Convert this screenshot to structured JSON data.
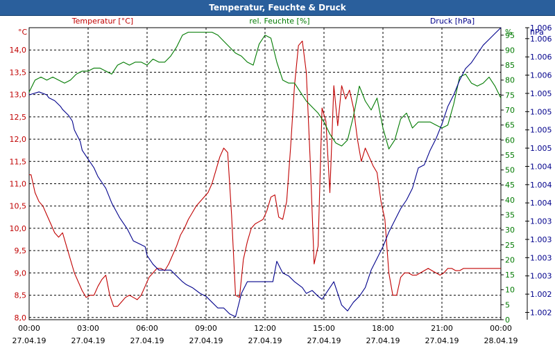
{
  "window": {
    "title": "Temperatur, Feuchte & Druck"
  },
  "chart_data": {
    "type": "line",
    "title": "Temperatur, Feuchte & Druck",
    "grid": true,
    "x_ticks": [
      {
        "time": "00:00",
        "date": "27.04.19"
      },
      {
        "time": "03:00",
        "date": "27.04.19"
      },
      {
        "time": "06:00",
        "date": "27.04.19"
      },
      {
        "time": "09:00",
        "date": "27.04.19"
      },
      {
        "time": "12:00",
        "date": "27.04.19"
      },
      {
        "time": "15:00",
        "date": "27.04.19"
      },
      {
        "time": "18:00",
        "date": "27.04.19"
      },
      {
        "time": "21:00",
        "date": "27.04.19"
      },
      {
        "time": "00:00",
        "date": "28.04.19"
      }
    ],
    "xlim_hours": [
      0,
      24
    ],
    "axes": {
      "left": {
        "unit": "°C",
        "ylim": [
          7.95,
          14.5
        ],
        "ticks": [
          "8,0",
          "8,5",
          "9,0",
          "9,5",
          "10,0",
          "10,5",
          "11,0",
          "11,5",
          "12,0",
          "12,5",
          "13,0",
          "13,5",
          "14,0"
        ],
        "tick_values": [
          8,
          8.5,
          9,
          9.5,
          10,
          10.5,
          11,
          11.5,
          12,
          12.5,
          13,
          13.5,
          14
        ],
        "color": "#c00000"
      },
      "right1": {
        "unit": "%",
        "ylim": [
          0,
          97.5
        ],
        "ticks": [
          "0",
          "5",
          "10",
          "15",
          "20",
          "25",
          "30",
          "35",
          "40",
          "45",
          "50",
          "55",
          "60",
          "65",
          "70",
          "75",
          "80",
          "85",
          "90",
          "95"
        ],
        "tick_values": [
          0,
          5,
          10,
          15,
          20,
          25,
          30,
          35,
          40,
          45,
          50,
          55,
          60,
          65,
          70,
          75,
          80,
          85,
          90,
          95
        ],
        "color": "#007a00"
      },
      "right2": {
        "unit": "hPa",
        "ylim": [
          0,
          1
        ],
        "ticks": [
          "1.002",
          "1.002",
          "1.003",
          "1.003",
          "1.003",
          "1.003",
          "1.004",
          "1.004",
          "1.004",
          "1.005",
          "1.005",
          "1.005",
          "1.005",
          "1.006",
          "1.006",
          "1.006",
          "1.006"
        ],
        "tick_values": [
          0.025,
          0.0875,
          0.15,
          0.2125,
          0.275,
          0.3375,
          0.4,
          0.4625,
          0.525,
          0.5875,
          0.65,
          0.7125,
          0.775,
          0.8375,
          0.9,
          0.9625,
          1.0
        ],
        "color": "#00008b"
      }
    },
    "series": [
      {
        "name": "Temperatur [°C]",
        "axis": "left",
        "color": "#c00000",
        "x": [
          0,
          0.1,
          0.3,
          0.5,
          0.7,
          0.9,
          1.1,
          1.3,
          1.5,
          1.7,
          1.9,
          2.1,
          2.3,
          2.5,
          2.7,
          2.9,
          3.1,
          3.3,
          3.5,
          3.7,
          3.9,
          4.1,
          4.3,
          4.5,
          4.7,
          4.9,
          5.1,
          5.3,
          5.5,
          5.7,
          5.9,
          6.1,
          6.3,
          6.5,
          6.7,
          6.9,
          7.1,
          7.3,
          7.5,
          7.7,
          7.9,
          8.1,
          8.3,
          8.5,
          8.7,
          8.9,
          9.1,
          9.3,
          9.5,
          9.7,
          9.9,
          10.1,
          10.3,
          10.5,
          10.7,
          10.9,
          11.1,
          11.3,
          11.5,
          11.7,
          11.9,
          12.1,
          12.3,
          12.5,
          12.7,
          12.9,
          13.1,
          13.3,
          13.5,
          13.7,
          13.9,
          14.1,
          14.3,
          14.5,
          14.7,
          14.9,
          15.1,
          15.3,
          15.5,
          15.7,
          15.9,
          16.1,
          16.3,
          16.5,
          16.7,
          16.9,
          17.1,
          17.3,
          17.5,
          17.7,
          17.9,
          18.1,
          18.3,
          18.5,
          18.7,
          18.9,
          19.1,
          19.3,
          19.5,
          19.7,
          19.9,
          20.1,
          20.3,
          20.5,
          20.7,
          20.9,
          21.1,
          21.3,
          21.5,
          21.7,
          21.9,
          22.1,
          22.3,
          22.5,
          22.7,
          22.9,
          23.1,
          23.3,
          23.5,
          23.7,
          23.9,
          24
        ],
        "values": [
          11.2,
          11.2,
          10.8,
          10.6,
          10.5,
          10.3,
          10.1,
          9.9,
          9.8,
          9.9,
          9.6,
          9.3,
          9.0,
          8.8,
          8.6,
          8.45,
          8.5,
          8.5,
          8.7,
          8.85,
          8.95,
          8.5,
          8.25,
          8.25,
          8.35,
          8.45,
          8.5,
          8.45,
          8.4,
          8.5,
          8.7,
          8.9,
          9.0,
          9.1,
          9.1,
          9.05,
          9.2,
          9.4,
          9.6,
          9.85,
          10.0,
          10.2,
          10.35,
          10.5,
          10.6,
          10.7,
          10.8,
          11.0,
          11.3,
          11.6,
          11.8,
          11.7,
          10.3,
          8.5,
          8.45,
          9.3,
          9.7,
          10.0,
          10.1,
          10.15,
          10.2,
          10.4,
          10.7,
          10.75,
          10.25,
          10.2,
          10.6,
          11.8,
          13.2,
          14.1,
          14.2,
          13.5,
          11.5,
          9.2,
          9.6,
          12.7,
          12.4,
          10.8,
          13.2,
          12.3,
          13.2,
          12.9,
          13.1,
          12.7,
          12.0,
          11.5,
          11.8,
          11.6,
          11.4,
          11.25,
          10.6,
          10.2,
          9.0,
          8.5,
          8.5,
          8.9,
          9.0,
          9.0,
          8.95,
          8.95,
          9.0,
          9.05,
          9.1,
          9.05,
          9.0,
          8.95,
          9.0,
          9.1,
          9.1,
          9.05,
          9.05,
          9.1,
          9.1,
          9.1,
          9.1,
          9.1,
          9.1,
          9.1,
          9.1,
          9.1,
          9.1,
          9.1
        ],
        "label_color": "#c00000"
      },
      {
        "name": "rel. Feuchte [%]",
        "axis": "right1",
        "color": "#007a00",
        "x": [
          0,
          0.3,
          0.6,
          0.9,
          1.2,
          1.5,
          1.8,
          2.1,
          2.4,
          2.7,
          3.0,
          3.3,
          3.6,
          3.9,
          4.2,
          4.5,
          4.8,
          5.1,
          5.4,
          5.7,
          6.0,
          6.3,
          6.6,
          6.9,
          7.2,
          7.5,
          7.8,
          8.1,
          8.4,
          8.7,
          9.0,
          9.3,
          9.6,
          9.9,
          10.2,
          10.5,
          10.8,
          11.1,
          11.4,
          11.7,
          12.0,
          12.3,
          12.6,
          12.9,
          13.2,
          13.5,
          13.8,
          14.1,
          14.4,
          14.7,
          15.0,
          15.3,
          15.6,
          15.9,
          16.2,
          16.5,
          16.8,
          17.1,
          17.4,
          17.7,
          18.0,
          18.3,
          18.6,
          18.9,
          19.2,
          19.5,
          19.8,
          20.1,
          20.4,
          20.7,
          21.0,
          21.3,
          21.6,
          21.9,
          22.2,
          22.5,
          22.8,
          23.1,
          23.4,
          23.7,
          24
        ],
        "values": [
          76,
          80,
          81,
          80,
          81,
          80,
          79,
          80,
          82,
          83,
          83,
          84,
          84,
          83,
          82,
          85,
          86,
          85,
          86,
          86,
          85,
          87,
          86,
          86,
          88,
          91,
          95,
          96,
          96,
          96,
          96,
          96,
          95,
          93,
          91,
          89,
          88,
          86,
          85,
          92,
          95,
          94,
          86,
          80,
          79,
          79,
          76,
          73,
          71,
          69,
          66,
          62,
          59,
          58,
          60,
          68,
          78,
          73,
          70,
          74,
          64,
          57,
          60,
          67,
          69,
          64,
          66,
          66,
          66,
          65,
          64,
          65,
          72,
          81,
          82,
          79,
          78,
          79,
          81,
          78,
          74
        ],
        "label_color": "#007a00"
      },
      {
        "name": "Druck [hPa]",
        "axis": "right2",
        "color": "#00008b",
        "x": [
          0,
          0.5,
          0.9,
          1.0,
          1.3,
          1.6,
          1.7,
          2.0,
          2.2,
          2.3,
          2.6,
          2.7,
          3.0,
          3.3,
          3.5,
          3.9,
          4.2,
          4.6,
          5.0,
          5.3,
          5.6,
          5.9,
          6.0,
          6.3,
          6.6,
          6.9,
          7.2,
          7.5,
          7.8,
          8.0,
          8.3,
          8.7,
          9.0,
          9.3,
          9.6,
          9.9,
          10.2,
          10.5,
          10.8,
          11.1,
          11.4,
          11.7,
          11.9,
          12.1,
          12.4,
          12.6,
          12.9,
          13.2,
          13.5,
          13.9,
          14.1,
          14.4,
          14.7,
          14.9,
          15.2,
          15.5,
          15.6,
          15.9,
          16.2,
          16.5,
          16.8,
          17.1,
          17.4,
          17.7,
          18.0,
          18.3,
          18.6,
          18.9,
          19.2,
          19.5,
          19.8,
          20.1,
          20.4,
          20.7,
          21.0,
          21.3,
          21.6,
          21.9,
          22.2,
          22.5,
          22.8,
          23.1,
          23.4,
          23.7,
          24
        ],
        "values": [
          0.77,
          0.78,
          0.77,
          0.76,
          0.75,
          0.73,
          0.72,
          0.7,
          0.68,
          0.65,
          0.61,
          0.58,
          0.55,
          0.52,
          0.49,
          0.45,
          0.4,
          0.35,
          0.31,
          0.27,
          0.26,
          0.25,
          0.22,
          0.19,
          0.17,
          0.17,
          0.17,
          0.15,
          0.13,
          0.12,
          0.11,
          0.09,
          0.08,
          0.06,
          0.04,
          0.04,
          0.02,
          0.01,
          0.09,
          0.13,
          0.13,
          0.13,
          0.13,
          0.13,
          0.13,
          0.2,
          0.16,
          0.15,
          0.13,
          0.11,
          0.09,
          0.1,
          0.08,
          0.07,
          0.1,
          0.13,
          0.11,
          0.05,
          0.03,
          0.06,
          0.08,
          0.11,
          0.17,
          0.21,
          0.25,
          0.3,
          0.34,
          0.38,
          0.41,
          0.45,
          0.52,
          0.53,
          0.58,
          0.62,
          0.67,
          0.73,
          0.77,
          0.82,
          0.86,
          0.88,
          0.91,
          0.94,
          0.96,
          0.98,
          1.0
        ],
        "label_color": "#00008b"
      }
    ]
  }
}
